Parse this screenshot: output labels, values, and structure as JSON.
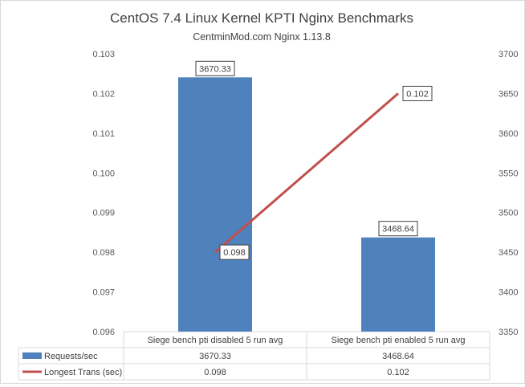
{
  "chart_data": {
    "type": "bar+line",
    "title": "CentOS 7.4 Linux Kernel KPTI Nginx Benchmarks",
    "subtitle": "CentminMod.com  Nginx 1.13.8",
    "categories": [
      "Siege bench pti disabled 5 run avg",
      "Siege bench pti enabled 5 run avg"
    ],
    "series": [
      {
        "name": "Requests/sec",
        "type": "bar",
        "axis": "secondary",
        "color": "#4f81bd",
        "values": [
          3670.33,
          3468.64
        ],
        "labels": [
          "3670.33",
          "3468.64"
        ]
      },
      {
        "name": "Longest Trans (sec)",
        "type": "line",
        "axis": "primary",
        "color": "#c0504d",
        "values": [
          0.098,
          0.102
        ],
        "labels": [
          "0.098",
          "0.102"
        ]
      }
    ],
    "y_left": {
      "min": 0.096,
      "max": 0.103,
      "step": 0.001,
      "ticks": [
        "0.096",
        "0.097",
        "0.098",
        "0.099",
        "0.100",
        "0.101",
        "0.102",
        "0.103"
      ]
    },
    "y_right": {
      "min": 3350,
      "max": 3700,
      "step": 50,
      "ticks": [
        "3350",
        "3400",
        "3450",
        "3500",
        "3550",
        "3600",
        "3650",
        "3700"
      ]
    },
    "legend": "data-table",
    "grid": false
  }
}
